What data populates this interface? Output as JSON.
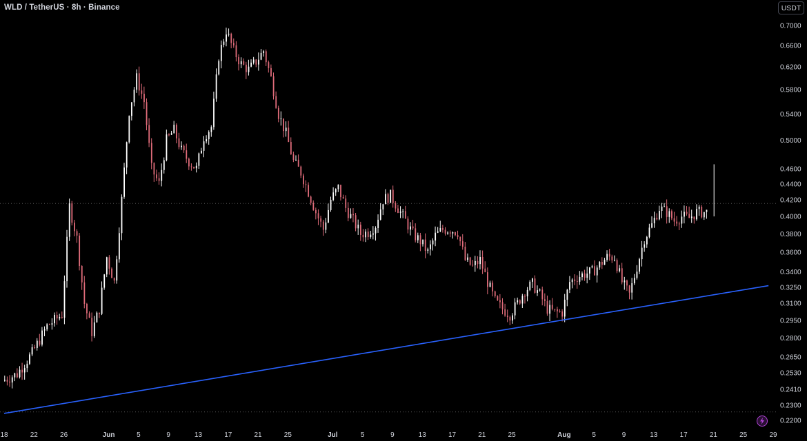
{
  "header": {
    "symbol": "WLD / TetherUS",
    "interval": "8h",
    "exchange": "Binance",
    "currency": "USDT"
  },
  "colors": {
    "background": "#000000",
    "up_candle": "#ffffff",
    "down_candle": "#e06c7a",
    "trendline": "#2962ff",
    "dotted_line": "#555555",
    "text": "#d1d4dc",
    "accent_icon": "#b042d6"
  },
  "chart_data": {
    "type": "candlestick",
    "title": "WLD / TetherUS · 8h · Binance",
    "y_scale": "log",
    "ylim": [
      0.215,
      0.725
    ],
    "y_ticks": [
      "0.7000",
      "0.6600",
      "0.6200",
      "0.5800",
      "0.5400",
      "0.5000",
      "0.4600",
      "0.4400",
      "0.4200",
      "0.4000",
      "0.3800",
      "0.3600",
      "0.3400",
      "0.3250",
      "0.3100",
      "0.2950",
      "0.2800",
      "0.2650",
      "0.2530",
      "0.2410",
      "0.2300",
      "0.2200"
    ],
    "x_ticks": [
      {
        "label": "18",
        "bold": false
      },
      {
        "label": "22",
        "bold": false
      },
      {
        "label": "26",
        "bold": false
      },
      {
        "label": "Jun",
        "bold": true
      },
      {
        "label": "5",
        "bold": false
      },
      {
        "label": "9",
        "bold": false
      },
      {
        "label": "13",
        "bold": false
      },
      {
        "label": "17",
        "bold": false
      },
      {
        "label": "21",
        "bold": false
      },
      {
        "label": "25",
        "bold": false
      },
      {
        "label": "Jul",
        "bold": true
      },
      {
        "label": "5",
        "bold": false
      },
      {
        "label": "9",
        "bold": false
      },
      {
        "label": "13",
        "bold": false
      },
      {
        "label": "17",
        "bold": false
      },
      {
        "label": "21",
        "bold": false
      },
      {
        "label": "25",
        "bold": false
      },
      {
        "label": "Aug",
        "bold": true
      },
      {
        "label": "5",
        "bold": false
      },
      {
        "label": "9",
        "bold": false
      },
      {
        "label": "13",
        "bold": false
      },
      {
        "label": "17",
        "bold": false
      },
      {
        "label": "21",
        "bold": false
      },
      {
        "label": "25",
        "bold": false
      },
      {
        "label": "29",
        "bold": false
      }
    ],
    "date_range": [
      "2024-05-18",
      "2024-08-28"
    ],
    "close_path": [
      [
        "2024-05-18",
        0.247
      ],
      [
        "2024-05-20",
        0.252
      ],
      [
        "2024-05-22",
        0.268
      ],
      [
        "2024-05-24",
        0.29
      ],
      [
        "2024-05-26",
        0.3
      ],
      [
        "2024-05-27",
        0.412
      ],
      [
        "2024-05-28",
        0.375
      ],
      [
        "2024-05-29",
        0.31
      ],
      [
        "2024-05-30",
        0.285
      ],
      [
        "2024-05-31",
        0.305
      ],
      [
        "2024-06-01",
        0.355
      ],
      [
        "2024-06-02",
        0.33
      ],
      [
        "2024-06-03",
        0.42
      ],
      [
        "2024-06-04",
        0.545
      ],
      [
        "2024-06-05",
        0.6
      ],
      [
        "2024-06-06",
        0.56
      ],
      [
        "2024-06-07",
        0.46
      ],
      [
        "2024-06-08",
        0.44
      ],
      [
        "2024-06-09",
        0.5
      ],
      [
        "2024-06-10",
        0.515
      ],
      [
        "2024-06-11",
        0.485
      ],
      [
        "2024-06-12",
        0.47
      ],
      [
        "2024-06-13",
        0.46
      ],
      [
        "2024-06-14",
        0.505
      ],
      [
        "2024-06-15",
        0.52
      ],
      [
        "2024-06-16",
        0.64
      ],
      [
        "2024-06-17",
        0.69
      ],
      [
        "2024-06-18",
        0.65
      ],
      [
        "2024-06-19",
        0.625
      ],
      [
        "2024-06-20",
        0.615
      ],
      [
        "2024-06-21",
        0.63
      ],
      [
        "2024-06-22",
        0.65
      ],
      [
        "2024-06-23",
        0.6
      ],
      [
        "2024-06-24",
        0.54
      ],
      [
        "2024-06-25",
        0.51
      ],
      [
        "2024-06-26",
        0.47
      ],
      [
        "2024-06-27",
        0.455
      ],
      [
        "2024-06-28",
        0.43
      ],
      [
        "2024-06-29",
        0.405
      ],
      [
        "2024-06-30",
        0.385
      ],
      [
        "2024-07-01",
        0.42
      ],
      [
        "2024-07-02",
        0.435
      ],
      [
        "2024-07-03",
        0.41
      ],
      [
        "2024-07-04",
        0.395
      ],
      [
        "2024-07-05",
        0.38
      ],
      [
        "2024-07-06",
        0.382
      ],
      [
        "2024-07-07",
        0.39
      ],
      [
        "2024-07-08",
        0.42
      ],
      [
        "2024-07-09",
        0.425
      ],
      [
        "2024-07-10",
        0.41
      ],
      [
        "2024-07-11",
        0.395
      ],
      [
        "2024-07-12",
        0.38
      ],
      [
        "2024-07-13",
        0.372
      ],
      [
        "2024-07-14",
        0.36
      ],
      [
        "2024-07-15",
        0.378
      ],
      [
        "2024-07-16",
        0.385
      ],
      [
        "2024-07-17",
        0.385
      ],
      [
        "2024-07-18",
        0.382
      ],
      [
        "2024-07-19",
        0.352
      ],
      [
        "2024-07-20",
        0.345
      ],
      [
        "2024-07-21",
        0.352
      ],
      [
        "2024-07-22",
        0.33
      ],
      [
        "2024-07-23",
        0.312
      ],
      [
        "2024-07-24",
        0.305
      ],
      [
        "2024-07-25",
        0.3
      ],
      [
        "2024-07-26",
        0.31
      ],
      [
        "2024-07-27",
        0.322
      ],
      [
        "2024-07-28",
        0.328
      ],
      [
        "2024-07-29",
        0.318
      ],
      [
        "2024-07-30",
        0.305
      ],
      [
        "2024-07-31",
        0.302
      ],
      [
        "2024-08-01",
        0.302
      ],
      [
        "2024-08-02",
        0.33
      ],
      [
        "2024-08-03",
        0.335
      ],
      [
        "2024-08-04",
        0.338
      ],
      [
        "2024-08-05",
        0.34
      ],
      [
        "2024-08-06",
        0.347
      ],
      [
        "2024-08-07",
        0.355
      ],
      [
        "2024-08-08",
        0.355
      ],
      [
        "2024-08-09",
        0.33
      ],
      [
        "2024-08-10",
        0.318
      ],
      [
        "2024-08-11",
        0.345
      ],
      [
        "2024-08-12",
        0.375
      ],
      [
        "2024-08-13",
        0.39
      ],
      [
        "2024-08-14",
        0.41
      ],
      [
        "2024-08-15",
        0.405
      ],
      [
        "2024-08-16",
        0.395
      ],
      [
        "2024-08-17",
        0.4
      ],
      [
        "2024-08-18",
        0.398
      ],
      [
        "2024-08-19",
        0.405
      ]
    ],
    "trendline": {
      "from": [
        "2024-05-18",
        0.2245
      ],
      "to": [
        "2024-08-28",
        0.3265
      ]
    },
    "dotted_levels": [
      0.4155,
      0.2255
    ],
    "annotation_spike": [
      "2024-08-21",
      0.466
    ],
    "grid": false,
    "legend": "none"
  }
}
